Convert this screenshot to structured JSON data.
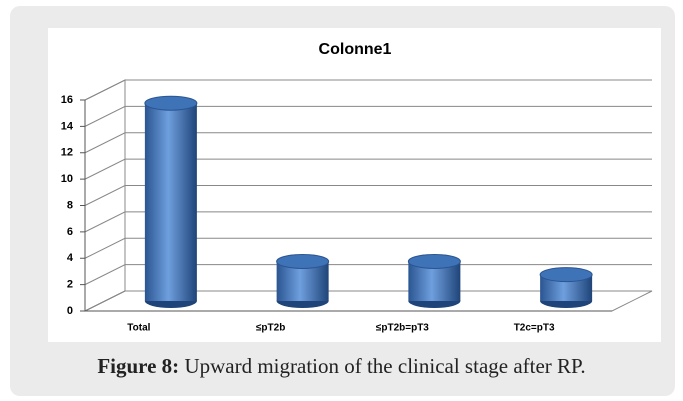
{
  "chart_data": {
    "type": "bar3d",
    "title": "Colonne1",
    "categories": [
      "Total",
      "≤pT2b",
      "≤pT2b=pT3",
      "T2c=pT3"
    ],
    "values": [
      15,
      3,
      3,
      2
    ],
    "color": "#3f73b8",
    "ylim": [
      0,
      16
    ],
    "yticks": [
      0,
      2,
      4,
      6,
      8,
      10,
      12,
      14,
      16
    ],
    "grid": true
  },
  "caption": {
    "label": "Figure 8:",
    "text": "Upward migration of the clinical stage after RP."
  }
}
